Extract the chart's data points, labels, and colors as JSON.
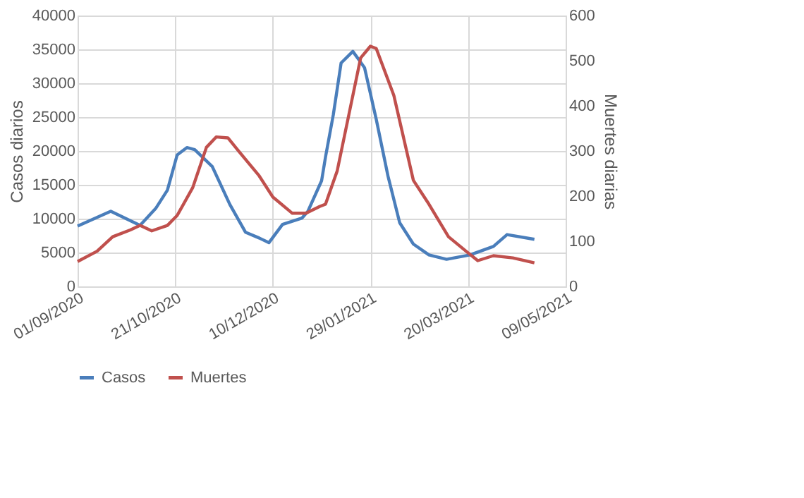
{
  "chart_data": {
    "type": "line",
    "ylabel": "Casos diarios",
    "y2label": "Muertes diarias",
    "xlim": [
      "2020-09-01",
      "2021-05-09"
    ],
    "xticks": [
      {
        "value": "2020-09-01",
        "label": "01/09/2020"
      },
      {
        "value": "2020-10-21",
        "label": "21/10/2020"
      },
      {
        "value": "2020-12-10",
        "label": "10/12/2020"
      },
      {
        "value": "2021-01-29",
        "label": "29/01/2021"
      },
      {
        "value": "2021-03-20",
        "label": "20/03/2021"
      },
      {
        "value": "2021-05-09",
        "label": "09/05/2021"
      }
    ],
    "ylim": [
      0,
      40000
    ],
    "yticks": [
      0,
      5000,
      10000,
      15000,
      20000,
      25000,
      30000,
      35000,
      40000
    ],
    "y2lim": [
      0,
      600
    ],
    "y2ticks": [
      0,
      100,
      200,
      300,
      400,
      500,
      600
    ],
    "grid": true,
    "legend": "bottom",
    "line_style": "solid",
    "marker": "none",
    "series": [
      {
        "name": "Casos",
        "color": "#4a7ebb",
        "x": [
          "2020-09-01",
          "2020-09-18",
          "2020-10-03",
          "2020-10-11",
          "2020-10-17",
          "2020-10-22",
          "2020-10-27",
          "2020-10-31",
          "2020-11-09",
          "2020-11-18",
          "2020-11-26",
          "2020-12-03",
          "2020-12-08",
          "2020-12-15",
          "2020-12-25",
          "2020-12-28",
          "2021-01-04",
          "2021-01-06",
          "2021-01-10",
          "2021-01-14",
          "2021-01-20",
          "2021-01-26",
          "2021-02-01",
          "2021-02-07",
          "2021-02-13",
          "2021-02-20",
          "2021-02-28",
          "2021-03-09",
          "2021-03-21",
          "2021-04-02",
          "2021-04-09",
          "2021-04-23"
        ],
        "values": [
          8900,
          11100,
          9000,
          11500,
          14200,
          19400,
          20500,
          20200,
          17700,
          12100,
          8000,
          7150,
          6450,
          9150,
          10100,
          11100,
          15600,
          19100,
          25350,
          33000,
          34700,
          32300,
          24650,
          16300,
          9400,
          6250,
          4650,
          4000,
          4650,
          5900,
          7650,
          6950
        ]
      },
      {
        "name": "Muertes",
        "color": "#c0504d",
        "axis": "y2",
        "x": [
          "2020-09-01",
          "2020-09-11",
          "2020-09-19",
          "2020-09-28",
          "2020-10-03",
          "2020-10-09",
          "2020-10-17",
          "2020-10-22",
          "2020-10-30",
          "2020-11-06",
          "2020-11-11",
          "2020-11-17",
          "2020-11-23",
          "2020-12-03",
          "2020-12-10",
          "2020-12-20",
          "2020-12-27",
          "2021-01-03",
          "2021-01-06",
          "2021-01-12",
          "2021-01-18",
          "2021-01-24",
          "2021-01-29",
          "2021-02-01",
          "2021-02-10",
          "2021-02-20",
          "2021-02-28",
          "2021-03-10",
          "2021-03-19",
          "2021-03-25",
          "2021-04-02",
          "2021-04-12",
          "2021-04-23"
        ],
        "values": [
          55,
          78,
          110,
          125,
          135,
          123,
          135,
          157,
          219,
          308,
          331,
          329,
          297,
          245,
          198,
          162,
          162,
          177,
          182,
          256,
          381,
          506,
          532,
          527,
          423,
          235,
          182,
          110,
          78,
          57,
          68,
          63,
          52
        ]
      }
    ]
  }
}
